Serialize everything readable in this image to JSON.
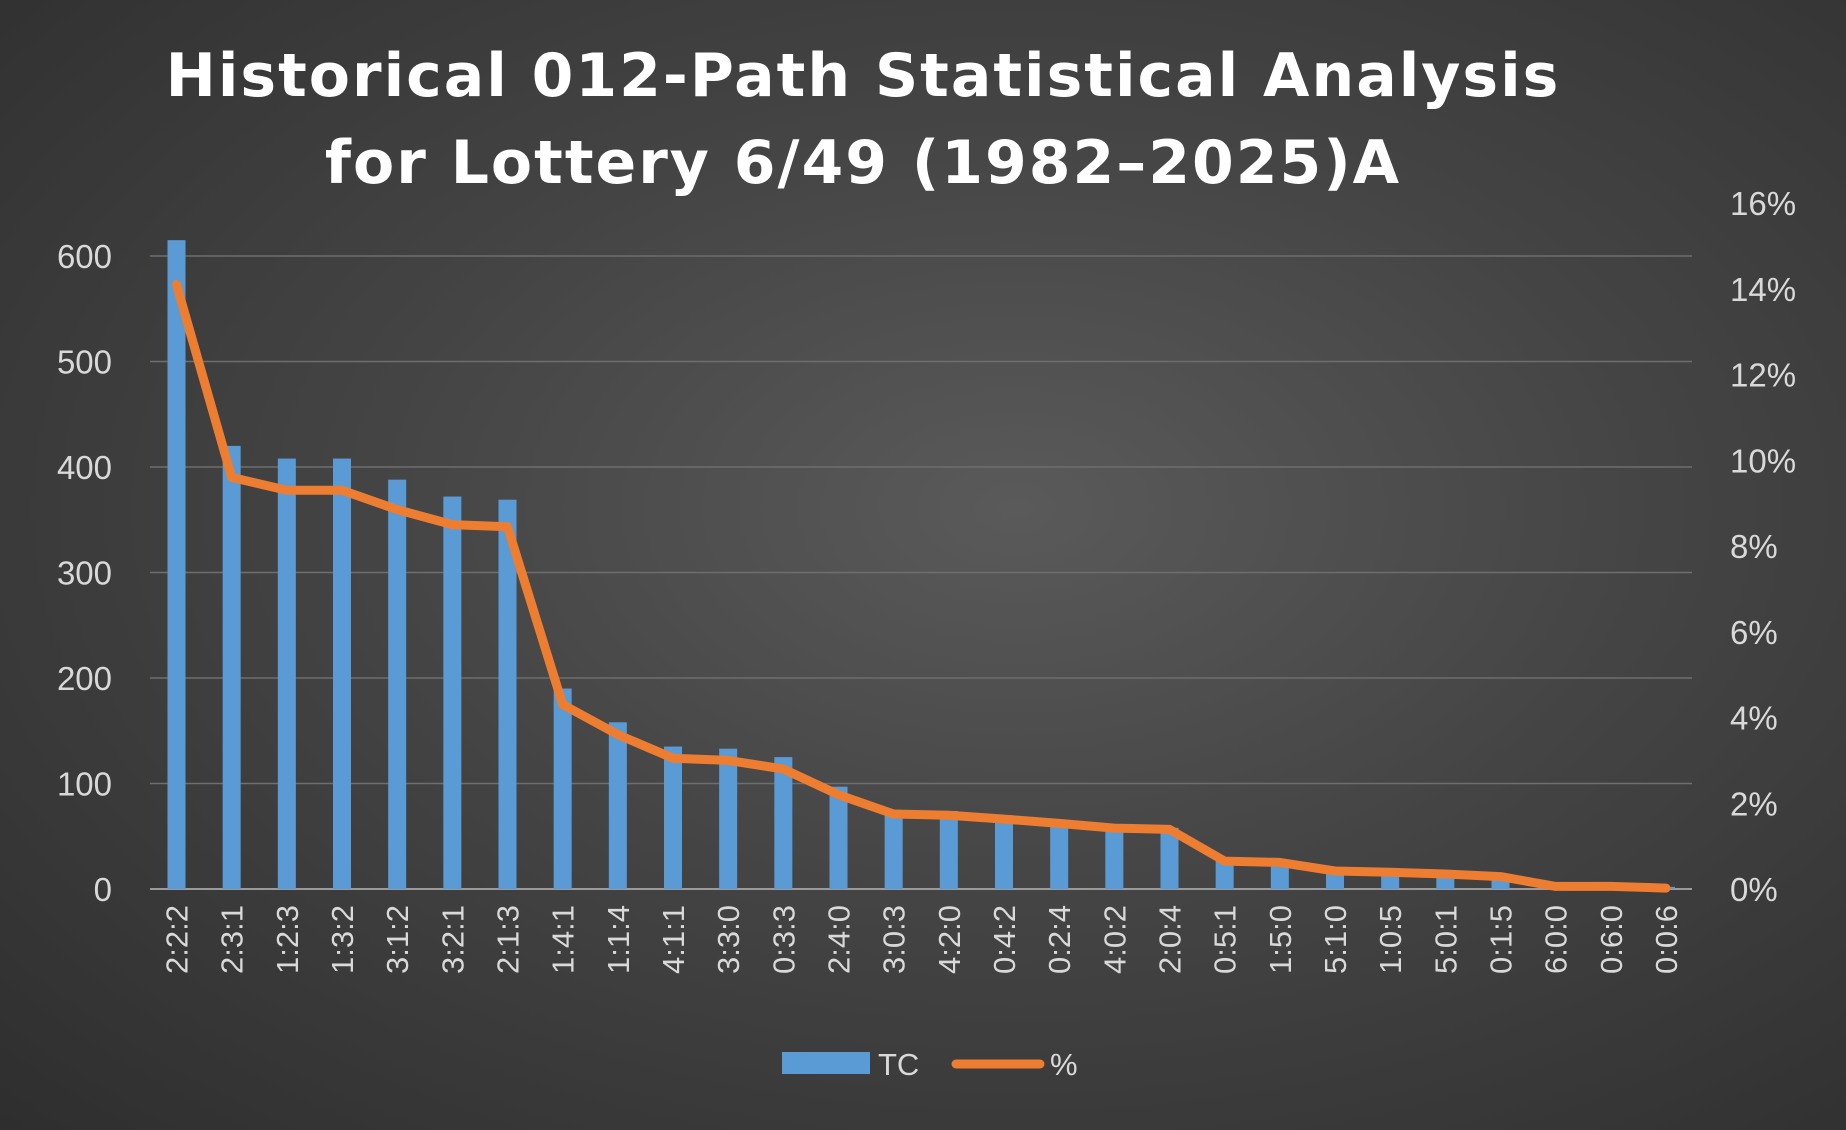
{
  "chart_data": {
    "type": "bar",
    "title": [
      "Historical 012-Path Statistical Analysis",
      "for Lottery 6/49 (1982–2025)A"
    ],
    "categories": [
      "2:2:2",
      "2:3:1",
      "1:2:3",
      "1:3:2",
      "3:1:2",
      "3:2:1",
      "2:1:3",
      "1:4:1",
      "1:1:4",
      "4:1:1",
      "3:3:0",
      "0:3:3",
      "2:4:0",
      "3:0:3",
      "4:2:0",
      "0:4:2",
      "0:2:4",
      "4:0:2",
      "2:0:4",
      "0:5:1",
      "1:5:0",
      "5:1:0",
      "1:0:5",
      "5:0:1",
      "0:1:5",
      "6:0:0",
      "0:6:0",
      "0:0:6"
    ],
    "series": [
      {
        "name": "TC",
        "type": "bar",
        "axis": "left",
        "color": "#5b9bd5",
        "values": [
          615,
          420,
          408,
          408,
          388,
          372,
          369,
          190,
          158,
          135,
          133,
          125,
          97,
          75,
          74,
          70,
          65,
          60,
          58,
          30,
          28,
          18,
          17,
          14,
          12,
          4,
          3,
          2
        ]
      },
      {
        "name": "%",
        "type": "line",
        "axis": "right",
        "color": "#ed7d31",
        "values": [
          14.1,
          9.6,
          9.3,
          9.3,
          8.85,
          8.5,
          8.45,
          4.3,
          3.6,
          3.05,
          3.0,
          2.8,
          2.2,
          1.75,
          1.72,
          1.63,
          1.53,
          1.42,
          1.39,
          0.65,
          0.62,
          0.42,
          0.39,
          0.35,
          0.29,
          0.06,
          0.06,
          0.02
        ]
      }
    ],
    "y_left": {
      "min": 0,
      "max": 650,
      "ticks": [
        0,
        100,
        200,
        300,
        400,
        500,
        600
      ]
    },
    "y_right": {
      "min": 0,
      "max": 16,
      "ticks": [
        0,
        2,
        4,
        6,
        8,
        10,
        12,
        14,
        16
      ],
      "suffix": "%"
    },
    "grid": true,
    "legend": "bottom"
  }
}
